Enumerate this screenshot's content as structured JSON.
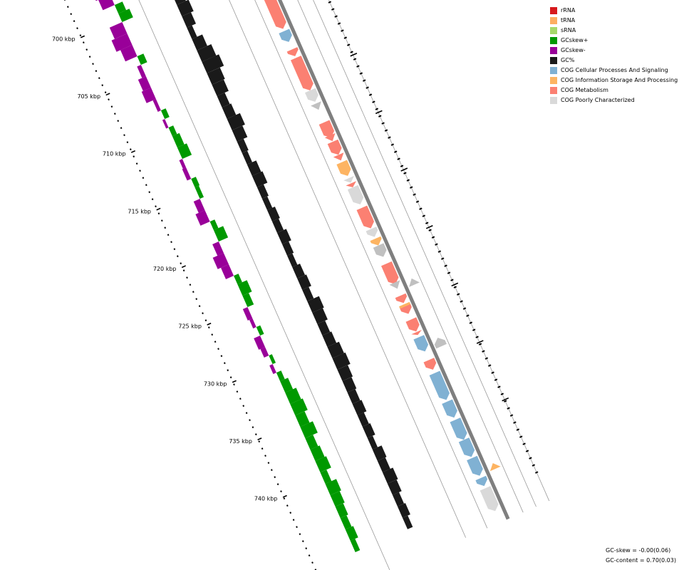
{
  "legend": {
    "items": [
      {
        "label": "rRNA",
        "color": "#d7191c"
      },
      {
        "label": "tRNA",
        "color": "#fdae61"
      },
      {
        "label": "sRNA",
        "color": "#a6d96a"
      },
      {
        "label": "GCskew+",
        "color": "#009900"
      },
      {
        "label": "GCskew-",
        "color": "#990099"
      },
      {
        "label": "GC%",
        "color": "#1a1a1a"
      },
      {
        "label": "COG Cellular Processes And Signaling",
        "color": "#80b1d3"
      },
      {
        "label": "COG Information Storage And Processing",
        "color": "#fdb462"
      },
      {
        "label": "COG Metabolism",
        "color": "#fb8072"
      },
      {
        "label": "COG Poorly Characterized",
        "color": "#d9d9d9"
      }
    ]
  },
  "scale": {
    "labels": [
      "700 kbp",
      "705 kbp",
      "710 kbp",
      "715 kbp",
      "720 kbp",
      "725 kbp",
      "730 kbp",
      "735 kbp",
      "740 kbp"
    ]
  },
  "stats": {
    "gc_skew": "GC-skew = -0.00(0.06)",
    "gc_content": "GC-content = 0.70(0.03)"
  },
  "colors": {
    "skew_pos": "#009900",
    "skew_neg": "#990099",
    "gc": "#1a1a1a",
    "backbone": "#7f7f7f",
    "track_line": "#9a9a9a",
    "cog_cell": "#80b1d3",
    "cog_info": "#fdb462",
    "cog_meta": "#fb8072",
    "cog_poor": "#d9d9d9",
    "cog_poor_dark": "#c0c0c0"
  },
  "skew_segments": [
    {
      "t": 0.0,
      "h": 18,
      "s": -1
    },
    {
      "t": 0.022,
      "h": 15,
      "s": -1
    },
    {
      "t": 0.04,
      "h": 10,
      "s": 1
    },
    {
      "t": 0.055,
      "h": 14,
      "s": 1
    },
    {
      "t": 0.07,
      "h": 16,
      "s": -1
    },
    {
      "t": 0.09,
      "h": 20,
      "s": -1
    },
    {
      "t": 0.11,
      "h": 15,
      "s": -1
    },
    {
      "t": 0.13,
      "h": 8,
      "s": 1
    },
    {
      "t": 0.145,
      "h": 5,
      "s": -1
    },
    {
      "t": 0.165,
      "h": 10,
      "s": -1
    },
    {
      "t": 0.185,
      "h": 12,
      "s": -1
    },
    {
      "t": 0.205,
      "h": 4,
      "s": -1
    },
    {
      "t": 0.225,
      "h": 6,
      "s": 1
    },
    {
      "t": 0.24,
      "h": 3,
      "s": -1
    },
    {
      "t": 0.255,
      "h": 6,
      "s": 1
    },
    {
      "t": 0.27,
      "h": 9,
      "s": 1
    },
    {
      "t": 0.29,
      "h": 12,
      "s": 1
    },
    {
      "t": 0.31,
      "h": 4,
      "s": -1
    },
    {
      "t": 0.325,
      "h": 5,
      "s": -1
    },
    {
      "t": 0.345,
      "h": 6,
      "s": 1
    },
    {
      "t": 0.36,
      "h": 5,
      "s": 1
    },
    {
      "t": 0.38,
      "h": 8,
      "s": -1
    },
    {
      "t": 0.4,
      "h": 12,
      "s": -1
    },
    {
      "t": 0.42,
      "h": 6,
      "s": 1
    },
    {
      "t": 0.435,
      "h": 12,
      "s": 1
    },
    {
      "t": 0.455,
      "h": 8,
      "s": -1
    },
    {
      "t": 0.475,
      "h": 14,
      "s": -1
    },
    {
      "t": 0.495,
      "h": 10,
      "s": -1
    },
    {
      "t": 0.515,
      "h": 6,
      "s": 1
    },
    {
      "t": 0.53,
      "h": 12,
      "s": 1
    },
    {
      "t": 0.55,
      "h": 8,
      "s": 1
    },
    {
      "t": 0.57,
      "h": 6,
      "s": -1
    },
    {
      "t": 0.59,
      "h": 4,
      "s": -1
    },
    {
      "t": 0.605,
      "h": 5,
      "s": 1
    },
    {
      "t": 0.62,
      "h": 8,
      "s": -1
    },
    {
      "t": 0.64,
      "h": 6,
      "s": -1
    },
    {
      "t": 0.655,
      "h": 4,
      "s": 1
    },
    {
      "t": 0.67,
      "h": 4,
      "s": -1
    },
    {
      "t": 0.685,
      "h": 6,
      "s": 1
    },
    {
      "t": 0.7,
      "h": 10,
      "s": 1
    },
    {
      "t": 0.72,
      "h": 14,
      "s": 1
    },
    {
      "t": 0.74,
      "h": 16,
      "s": 1
    },
    {
      "t": 0.76,
      "h": 12,
      "s": 1
    },
    {
      "t": 0.78,
      "h": 16,
      "s": 1
    },
    {
      "t": 0.8,
      "h": 10,
      "s": 1
    },
    {
      "t": 0.82,
      "h": 12,
      "s": 1
    },
    {
      "t": 0.84,
      "h": 14,
      "s": 1
    },
    {
      "t": 0.86,
      "h": 8,
      "s": 1
    },
    {
      "t": 0.88,
      "h": 14,
      "s": 1
    },
    {
      "t": 0.9,
      "h": 12,
      "s": 1
    },
    {
      "t": 0.92,
      "h": 10,
      "s": 1
    },
    {
      "t": 0.94,
      "h": 8,
      "s": 1
    },
    {
      "t": 0.96,
      "h": 10,
      "s": 1
    },
    {
      "t": 0.98,
      "h": 6,
      "s": 1
    }
  ],
  "gc_segments": [
    {
      "t": 0.0,
      "h": 6
    },
    {
      "t": 0.02,
      "h": 10
    },
    {
      "t": 0.04,
      "h": 8
    },
    {
      "t": 0.06,
      "h": 14
    },
    {
      "t": 0.08,
      "h": 18
    },
    {
      "t": 0.1,
      "h": 14
    },
    {
      "t": 0.12,
      "h": 8
    },
    {
      "t": 0.14,
      "h": 16
    },
    {
      "t": 0.16,
      "h": 22
    },
    {
      "t": 0.18,
      "h": 26
    },
    {
      "t": 0.2,
      "h": 20
    },
    {
      "t": 0.22,
      "h": 18
    },
    {
      "t": 0.24,
      "h": 12
    },
    {
      "t": 0.26,
      "h": 14
    },
    {
      "t": 0.28,
      "h": 20
    },
    {
      "t": 0.3,
      "h": 16
    },
    {
      "t": 0.32,
      "h": 10
    },
    {
      "t": 0.34,
      "h": 8
    },
    {
      "t": 0.36,
      "h": 14
    },
    {
      "t": 0.38,
      "h": 16
    },
    {
      "t": 0.4,
      "h": 10
    },
    {
      "t": 0.42,
      "h": 8
    },
    {
      "t": 0.44,
      "h": 12
    },
    {
      "t": 0.46,
      "h": 10
    },
    {
      "t": 0.48,
      "h": 14
    },
    {
      "t": 0.5,
      "h": 10
    },
    {
      "t": 0.52,
      "h": 8
    },
    {
      "t": 0.54,
      "h": 12
    },
    {
      "t": 0.56,
      "h": 14
    },
    {
      "t": 0.58,
      "h": 10
    },
    {
      "t": 0.6,
      "h": 18
    },
    {
      "t": 0.62,
      "h": 16
    },
    {
      "t": 0.64,
      "h": 12
    },
    {
      "t": 0.66,
      "h": 14
    },
    {
      "t": 0.68,
      "h": 18
    },
    {
      "t": 0.7,
      "h": 20
    },
    {
      "t": 0.72,
      "h": 16
    },
    {
      "t": 0.74,
      "h": 14
    },
    {
      "t": 0.76,
      "h": 12
    },
    {
      "t": 0.78,
      "h": 14
    },
    {
      "t": 0.8,
      "h": 10
    },
    {
      "t": 0.82,
      "h": 12
    },
    {
      "t": 0.84,
      "h": 8
    },
    {
      "t": 0.86,
      "h": 14
    },
    {
      "t": 0.88,
      "h": 12
    },
    {
      "t": 0.9,
      "h": 16
    },
    {
      "t": 0.92,
      "h": 14
    },
    {
      "t": 0.94,
      "h": 10
    },
    {
      "t": 0.96,
      "h": 12
    },
    {
      "t": 0.98,
      "h": 8
    }
  ],
  "cds_features": [
    {
      "s": 0.005,
      "e": 0.03,
      "c": "cog_meta",
      "d": 1
    },
    {
      "s": 0.035,
      "e": 0.062,
      "c": "cog_meta",
      "d": 1
    },
    {
      "s": 0.082,
      "e": 0.096,
      "c": "cog_meta",
      "d": 1
    },
    {
      "s": 0.092,
      "e": 0.102,
      "c": "cog_meta",
      "d": -1
    },
    {
      "s": 0.103,
      "e": 0.122,
      "c": "cog_meta",
      "d": -1
    },
    {
      "s": 0.126,
      "e": 0.184,
      "c": "cog_meta",
      "d": -1
    },
    {
      "s": 0.188,
      "e": 0.207,
      "c": "cog_cell",
      "d": -1
    },
    {
      "s": 0.22,
      "e": 0.232,
      "c": "cog_meta",
      "d": -1
    },
    {
      "s": 0.235,
      "e": 0.292,
      "c": "cog_meta",
      "d": -1
    },
    {
      "s": 0.292,
      "e": 0.312,
      "c": "cog_poor",
      "d": -1
    },
    {
      "s": 0.315,
      "e": 0.326,
      "c": "cog_poor_dark",
      "d": -1
    },
    {
      "s": 0.348,
      "e": 0.375,
      "c": "cog_meta",
      "d": -1
    },
    {
      "s": 0.371,
      "e": 0.381,
      "c": "cog_meta",
      "d": -1
    },
    {
      "s": 0.382,
      "e": 0.405,
      "c": "cog_meta",
      "d": -1
    },
    {
      "s": 0.405,
      "e": 0.415,
      "c": "cog_meta",
      "d": -1
    },
    {
      "s": 0.418,
      "e": 0.442,
      "c": "cog_info",
      "d": -1
    },
    {
      "s": 0.446,
      "e": 0.454,
      "c": "cog_poor",
      "d": -1
    },
    {
      "s": 0.455,
      "e": 0.462,
      "c": "cog_meta",
      "d": -1
    },
    {
      "s": 0.462,
      "e": 0.492,
      "c": "cog_poor",
      "d": -1
    },
    {
      "s": 0.498,
      "e": 0.53,
      "c": "cog_meta",
      "d": -1
    },
    {
      "s": 0.517,
      "e": 0.534,
      "c": "cog_meta",
      "d": -1
    },
    {
      "s": 0.535,
      "e": 0.549,
      "c": "cog_poor",
      "d": -1
    },
    {
      "s": 0.552,
      "e": 0.564,
      "c": "cog_info",
      "d": -1
    },
    {
      "s": 0.564,
      "e": 0.584,
      "c": "cog_poor_dark",
      "d": -1
    },
    {
      "s": 0.596,
      "e": 0.632,
      "c": "cog_meta",
      "d": -1
    },
    {
      "s": 0.629,
      "e": 0.64,
      "c": "cog_poor_dark",
      "d": -1
    },
    {
      "s": 0.634,
      "e": 0.645,
      "c": "cog_poor_dark",
      "d": 1
    },
    {
      "s": 0.652,
      "e": 0.665,
      "c": "cog_meta",
      "d": -1
    },
    {
      "s": 0.667,
      "e": 0.681,
      "c": "cog_info",
      "d": -1
    },
    {
      "s": 0.671,
      "e": 0.684,
      "c": "cog_meta",
      "d": -1
    },
    {
      "s": 0.694,
      "e": 0.715,
      "c": "cog_meta",
      "d": -1
    },
    {
      "s": 0.716,
      "e": 0.721,
      "c": "cog_meta",
      "d": -1
    },
    {
      "s": 0.725,
      "e": 0.75,
      "c": "cog_cell",
      "d": -1
    },
    {
      "s": 0.738,
      "e": 0.753,
      "c": "cog_poor_dark",
      "d": 1
    },
    {
      "s": 0.765,
      "e": 0.782,
      "c": "cog_meta",
      "d": -1
    },
    {
      "s": 0.788,
      "e": 0.835,
      "c": "cog_cell",
      "d": -1
    },
    {
      "s": 0.838,
      "e": 0.866,
      "c": "cog_cell",
      "d": -1
    },
    {
      "s": 0.87,
      "e": 0.905,
      "c": "cog_cell",
      "d": -1
    },
    {
      "s": 0.905,
      "e": 0.935,
      "c": "cog_cell",
      "d": -1
    },
    {
      "s": 0.937,
      "e": 0.968,
      "c": "cog_cell",
      "d": -1
    },
    {
      "s": 0.972,
      "e": 0.986,
      "c": "cog_cell",
      "d": -1
    },
    {
      "s": 0.958,
      "e": 0.968,
      "c": "cog_info",
      "d": 1
    },
    {
      "s": 0.99,
      "e": 1.03,
      "c": "cog_poor",
      "d": -1
    }
  ]
}
